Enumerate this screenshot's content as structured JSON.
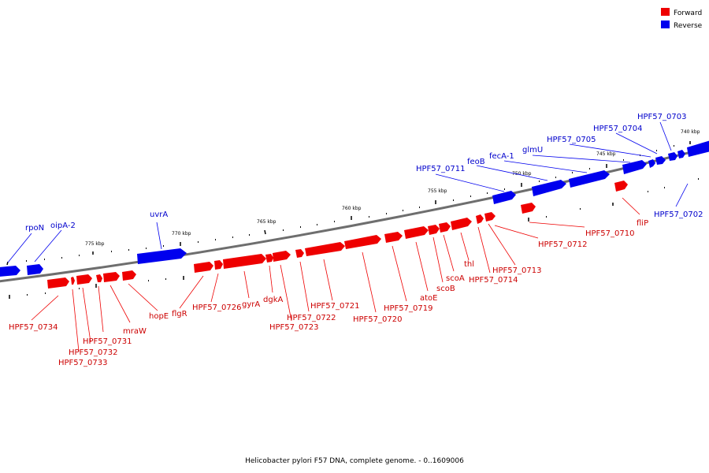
{
  "legend": {
    "forward_label": "Forward",
    "reverse_label": "Reverse",
    "forward_color": "#ee0000",
    "reverse_color": "#0000ee"
  },
  "caption": "Helicobacter pylori F57 DNA, complete genome. - 0..1609006",
  "colors": {
    "forward": "#ee0000",
    "reverse": "#0000ee",
    "backbone": "#808080"
  },
  "ticks": [
    "775 kbp",
    "770 kbp",
    "765 kbp",
    "760 kbp",
    "755 kbp",
    "750 kbp",
    "745 kbp",
    "740 kbp"
  ],
  "genes_reverse": [
    "rpoN",
    "oipA-2",
    "uvrA",
    "HPF57_0711",
    "feoB",
    "fecA-1",
    "glmU",
    "HPF57_0705",
    "HPF57_0704",
    "HPF57_0703",
    "HPF57_0702"
  ],
  "genes_forward": [
    "HPF57_0734",
    "HPF57_0733",
    "HPF57_0732",
    "HPF57_0731",
    "mraW",
    "hopE",
    "flgR",
    "HPF57_0726",
    "gyrA",
    "dgkA",
    "HPF57_0723",
    "HPF57_0722",
    "HPF57_0721",
    "HPF57_0720",
    "HPF57_0719",
    "atoE",
    "scoB",
    "scoA",
    "thl",
    "HPF57_0714",
    "HPF57_0713",
    "HPF57_0712",
    "HPF57_0710",
    "fliP"
  ]
}
